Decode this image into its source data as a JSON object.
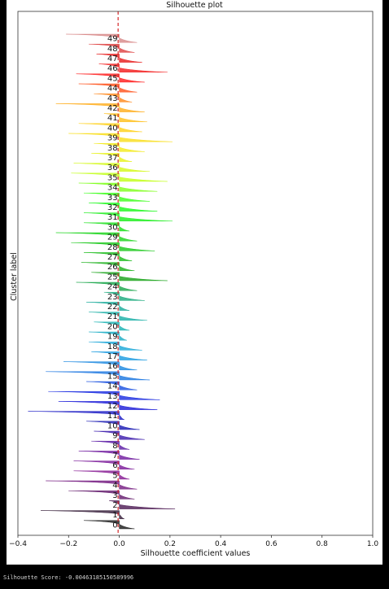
{
  "output": {
    "score_text": "Silhouette Score: -0.00463185150589996"
  },
  "chart_data": {
    "type": "silhouette",
    "title": "Silhouette plot",
    "xlabel": "Silhouette coefficient values",
    "ylabel": "Cluster label",
    "xlim": [
      -0.4,
      1.0
    ],
    "xticks": [
      -0.4,
      -0.2,
      0.0,
      0.2,
      0.4,
      0.6,
      0.8,
      1.0
    ],
    "xtick_labels": [
      "−0.4",
      "−0.2",
      "0.0",
      "0.2",
      "0.4",
      "0.6",
      "0.8",
      "1.0"
    ],
    "average_score_line": {
      "value": -0.0046,
      "color": "#d62728",
      "style": "dashed"
    },
    "clusters": [
      {
        "label": "0",
        "min": -0.14,
        "max": 0.06
      },
      {
        "label": "1",
        "min": -0.31,
        "max": 0.02
      },
      {
        "label": "2",
        "min": -0.04,
        "max": 0.22
      },
      {
        "label": "3",
        "min": -0.2,
        "max": 0.06
      },
      {
        "label": "4",
        "min": -0.29,
        "max": 0.07
      },
      {
        "label": "5",
        "min": -0.18,
        "max": 0.04
      },
      {
        "label": "6",
        "min": -0.18,
        "max": 0.06
      },
      {
        "label": "7",
        "min": -0.16,
        "max": 0.08
      },
      {
        "label": "8",
        "min": -0.11,
        "max": 0.04
      },
      {
        "label": "9",
        "min": -0.1,
        "max": 0.1
      },
      {
        "label": "10",
        "min": -0.13,
        "max": 0.08
      },
      {
        "label": "11",
        "min": -0.36,
        "max": 0.02
      },
      {
        "label": "12",
        "min": -0.24,
        "max": 0.15
      },
      {
        "label": "13",
        "min": -0.28,
        "max": 0.16
      },
      {
        "label": "14",
        "min": -0.13,
        "max": 0.07
      },
      {
        "label": "15",
        "min": -0.29,
        "max": 0.12
      },
      {
        "label": "16",
        "min": -0.22,
        "max": 0.07
      },
      {
        "label": "17",
        "min": -0.11,
        "max": 0.11
      },
      {
        "label": "18",
        "min": -0.12,
        "max": 0.09
      },
      {
        "label": "19",
        "min": -0.12,
        "max": 0.03
      },
      {
        "label": "20",
        "min": -0.1,
        "max": 0.04
      },
      {
        "label": "21",
        "min": -0.12,
        "max": 0.11
      },
      {
        "label": "22",
        "min": -0.13,
        "max": 0.04
      },
      {
        "label": "23",
        "min": -0.06,
        "max": 0.1
      },
      {
        "label": "24",
        "min": -0.17,
        "max": 0.07
      },
      {
        "label": "25",
        "min": -0.11,
        "max": 0.19
      },
      {
        "label": "26",
        "min": -0.15,
        "max": 0.06
      },
      {
        "label": "27",
        "min": -0.14,
        "max": 0.05
      },
      {
        "label": "28",
        "min": -0.19,
        "max": 0.14
      },
      {
        "label": "29",
        "min": -0.25,
        "max": 0.07
      },
      {
        "label": "30",
        "min": -0.14,
        "max": 0.04
      },
      {
        "label": "31",
        "min": -0.14,
        "max": 0.21
      },
      {
        "label": "32",
        "min": -0.12,
        "max": 0.15
      },
      {
        "label": "33",
        "min": -0.14,
        "max": 0.12
      },
      {
        "label": "34",
        "min": -0.16,
        "max": 0.15
      },
      {
        "label": "35",
        "min": -0.19,
        "max": 0.19
      },
      {
        "label": "36",
        "min": -0.18,
        "max": 0.12
      },
      {
        "label": "37",
        "min": -0.11,
        "max": 0.05
      },
      {
        "label": "38",
        "min": -0.1,
        "max": 0.1
      },
      {
        "label": "39",
        "min": -0.2,
        "max": 0.21
      },
      {
        "label": "40",
        "min": -0.16,
        "max": 0.09
      },
      {
        "label": "41",
        "min": -0.06,
        "max": 0.11
      },
      {
        "label": "42",
        "min": -0.25,
        "max": 0.1
      },
      {
        "label": "43",
        "min": -0.1,
        "max": 0.05
      },
      {
        "label": "44",
        "min": -0.16,
        "max": 0.07
      },
      {
        "label": "45",
        "min": -0.17,
        "max": 0.1
      },
      {
        "label": "46",
        "min": -0.08,
        "max": 0.19
      },
      {
        "label": "47",
        "min": -0.09,
        "max": 0.09
      },
      {
        "label": "48",
        "min": -0.12,
        "max": 0.06
      },
      {
        "label": "49",
        "min": -0.21,
        "max": 0.07
      }
    ]
  }
}
